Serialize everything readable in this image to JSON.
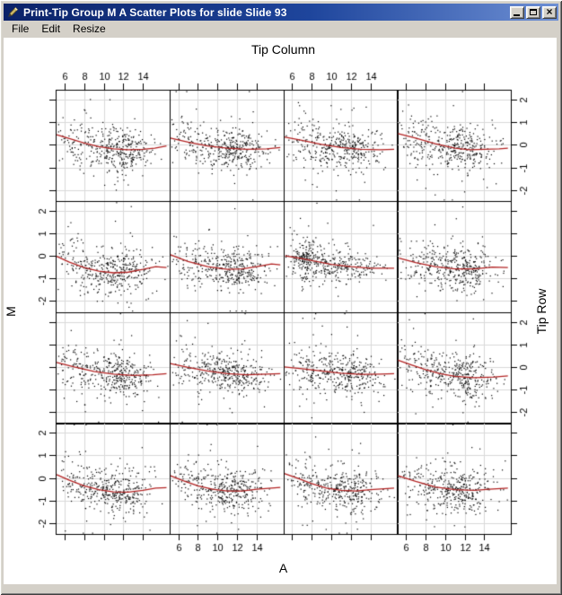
{
  "window": {
    "title": "Print-Tip Group M A Scatter Plots for slide Slide 93",
    "controls": {
      "minimize": "",
      "maximize": "",
      "close": "×"
    }
  },
  "menu": {
    "items": [
      {
        "label": "File"
      },
      {
        "label": "Edit"
      },
      {
        "label": "Resize"
      }
    ]
  },
  "icons": {
    "app_icon": "pen-icon",
    "minimize": "minimize-icon",
    "maximize": "maximize-icon",
    "close": "close-icon"
  },
  "colors": {
    "chrome": "#d4d0c8",
    "titlebar_left": "#0b2268",
    "titlebar_right": "#6d8fd4",
    "title_text": "#ffffff",
    "plot_background": "#ffffff"
  },
  "chart_data": {
    "type": "scatter",
    "layout": "4x4-lattice",
    "top_axis_label": "Tip Column",
    "bottom_axis_label": "A",
    "left_axis_label": "M",
    "right_axis_label": "Tip Row",
    "x_ticks": [
      6,
      8,
      10,
      12,
      14
    ],
    "y_ticks": [
      -2,
      -1,
      0,
      1,
      2
    ],
    "xlim": [
      5.1,
      16.7
    ],
    "ylim": [
      -2.48,
      2.44
    ],
    "grid": true,
    "legend": "none",
    "colors": {
      "point": "#000000",
      "curve": "#b22222",
      "gridline": "#d9d9d9",
      "panel_border": "#000000",
      "tick_text": "#000000"
    },
    "n_default": 390,
    "y_sd_default": 0.48,
    "default_mix": [
      [
        12.1,
        1.55,
        0.5
      ],
      [
        10.0,
        2.1,
        0.34
      ],
      [
        7.3,
        1.3,
        0.16
      ]
    ],
    "panels": [
      {
        "row": 0,
        "col": 0,
        "seed": 101,
        "curve": [
          [
            5.2,
            0.45
          ],
          [
            6.5,
            0.28
          ],
          [
            8,
            0.08
          ],
          [
            9.5,
            -0.08
          ],
          [
            11,
            -0.18
          ],
          [
            12.5,
            -0.22
          ],
          [
            14,
            -0.2
          ],
          [
            15.2,
            -0.15
          ],
          [
            16.4,
            -0.05
          ]
        ]
      },
      {
        "row": 0,
        "col": 1,
        "seed": 102,
        "curve": [
          [
            5.2,
            0.3
          ],
          [
            7,
            0.12
          ],
          [
            9,
            -0.05
          ],
          [
            11,
            -0.15
          ],
          [
            13,
            -0.2
          ],
          [
            15,
            -0.18
          ],
          [
            16.4,
            -0.12
          ]
        ]
      },
      {
        "row": 0,
        "col": 2,
        "seed": 103,
        "curve": [
          [
            5.2,
            0.35
          ],
          [
            7,
            0.2
          ],
          [
            9,
            0.02
          ],
          [
            11,
            -0.12
          ],
          [
            13,
            -0.2
          ],
          [
            15,
            -0.22
          ],
          [
            16.4,
            -0.2
          ]
        ]
      },
      {
        "row": 0,
        "col": 3,
        "seed": 104,
        "curve": [
          [
            5.2,
            0.5
          ],
          [
            7,
            0.3
          ],
          [
            9,
            0.05
          ],
          [
            11,
            -0.15
          ],
          [
            12.5,
            -0.22
          ],
          [
            14,
            -0.2
          ],
          [
            15.5,
            -0.18
          ],
          [
            16.4,
            -0.15
          ]
        ]
      },
      {
        "row": 1,
        "col": 0,
        "seed": 105,
        "curve": [
          [
            5.2,
            -0.02
          ],
          [
            6.5,
            -0.28
          ],
          [
            8,
            -0.52
          ],
          [
            9.5,
            -0.68
          ],
          [
            11,
            -0.75
          ],
          [
            12.5,
            -0.72
          ],
          [
            14,
            -0.6
          ],
          [
            15.3,
            -0.48
          ],
          [
            16.4,
            -0.52
          ]
        ]
      },
      {
        "row": 1,
        "col": 1,
        "seed": 106,
        "curve": [
          [
            5.2,
            0.05
          ],
          [
            7,
            -0.25
          ],
          [
            9,
            -0.48
          ],
          [
            11,
            -0.6
          ],
          [
            12.5,
            -0.58
          ],
          [
            14,
            -0.48
          ],
          [
            15.5,
            -0.36
          ],
          [
            16.4,
            -0.4
          ]
        ]
      },
      {
        "row": 1,
        "col": 2,
        "seed": 107,
        "n": 430,
        "y_sd": 0.38,
        "mix": [
          [
            7.2,
            0.8,
            0.4
          ],
          [
            11.8,
            2.0,
            0.45
          ],
          [
            9.5,
            1.4,
            0.15
          ]
        ],
        "curve": [
          [
            5.3,
            0.0
          ],
          [
            7,
            -0.12
          ],
          [
            8.5,
            -0.25
          ],
          [
            10,
            -0.38
          ],
          [
            12,
            -0.48
          ],
          [
            14,
            -0.55
          ],
          [
            16.4,
            -0.55
          ]
        ]
      },
      {
        "row": 1,
        "col": 3,
        "seed": 108,
        "curve": [
          [
            5.3,
            -0.1
          ],
          [
            7,
            -0.3
          ],
          [
            9,
            -0.48
          ],
          [
            11,
            -0.58
          ],
          [
            13,
            -0.58
          ],
          [
            14.8,
            -0.5
          ],
          [
            16.4,
            -0.52
          ]
        ]
      },
      {
        "row": 2,
        "col": 0,
        "seed": 109,
        "curve": [
          [
            5.2,
            0.2
          ],
          [
            7,
            0.0
          ],
          [
            9,
            -0.2
          ],
          [
            11,
            -0.32
          ],
          [
            13,
            -0.38
          ],
          [
            15,
            -0.35
          ],
          [
            16.4,
            -0.3
          ]
        ]
      },
      {
        "row": 2,
        "col": 1,
        "seed": 110,
        "curve": [
          [
            5.2,
            0.15
          ],
          [
            7,
            -0.02
          ],
          [
            9,
            -0.18
          ],
          [
            11,
            -0.3
          ],
          [
            13,
            -0.35
          ],
          [
            15,
            -0.32
          ],
          [
            16.4,
            -0.3
          ]
        ]
      },
      {
        "row": 2,
        "col": 2,
        "seed": 111,
        "curve": [
          [
            5.2,
            0.0
          ],
          [
            7,
            -0.08
          ],
          [
            9,
            -0.18
          ],
          [
            11,
            -0.28
          ],
          [
            13,
            -0.33
          ],
          [
            15,
            -0.32
          ],
          [
            16.4,
            -0.3
          ]
        ]
      },
      {
        "row": 2,
        "col": 3,
        "seed": 112,
        "curve": [
          [
            5.2,
            0.3
          ],
          [
            6.5,
            0.1
          ],
          [
            8,
            -0.12
          ],
          [
            9.5,
            -0.3
          ],
          [
            11,
            -0.42
          ],
          [
            13,
            -0.48
          ],
          [
            15,
            -0.45
          ],
          [
            16.4,
            -0.4
          ]
        ]
      },
      {
        "row": 3,
        "col": 0,
        "seed": 113,
        "curve": [
          [
            5.2,
            0.15
          ],
          [
            6.5,
            -0.1
          ],
          [
            8,
            -0.35
          ],
          [
            9.5,
            -0.52
          ],
          [
            11,
            -0.62
          ],
          [
            12.5,
            -0.63
          ],
          [
            14,
            -0.55
          ],
          [
            15.3,
            -0.45
          ],
          [
            16.4,
            -0.43
          ]
        ]
      },
      {
        "row": 3,
        "col": 1,
        "seed": 114,
        "curve": [
          [
            5.2,
            0.1
          ],
          [
            6.5,
            -0.12
          ],
          [
            8,
            -0.35
          ],
          [
            9.5,
            -0.5
          ],
          [
            11,
            -0.58
          ],
          [
            12.5,
            -0.58
          ],
          [
            14,
            -0.5
          ],
          [
            16.4,
            -0.42
          ]
        ]
      },
      {
        "row": 3,
        "col": 2,
        "seed": 115,
        "curve": [
          [
            5.2,
            0.2
          ],
          [
            6.5,
            0.0
          ],
          [
            8,
            -0.25
          ],
          [
            9.5,
            -0.45
          ],
          [
            11,
            -0.55
          ],
          [
            12.5,
            -0.58
          ],
          [
            14,
            -0.52
          ],
          [
            16.4,
            -0.45
          ]
        ]
      },
      {
        "row": 3,
        "col": 3,
        "seed": 116,
        "curve": [
          [
            5.2,
            0.1
          ],
          [
            7,
            -0.15
          ],
          [
            9,
            -0.4
          ],
          [
            11,
            -0.52
          ],
          [
            13,
            -0.55
          ],
          [
            14.5,
            -0.5
          ],
          [
            16.4,
            -0.45
          ]
        ]
      }
    ]
  }
}
